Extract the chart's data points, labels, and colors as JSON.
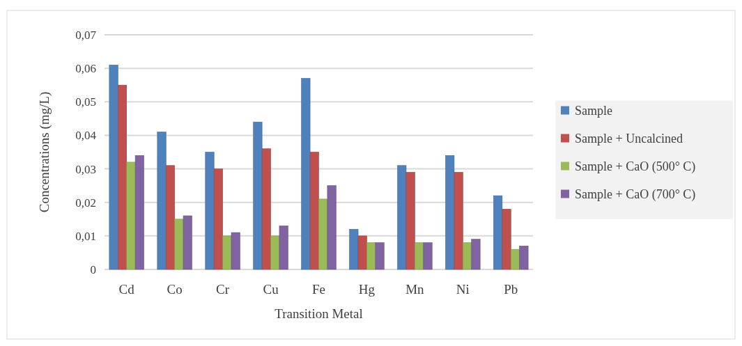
{
  "chart_data": {
    "type": "bar",
    "xlabel": "Transition Metal",
    "ylabel": "Concentrations (mg/L)",
    "categories": [
      "Cd",
      "Co",
      "Cr",
      "Cu",
      "Fe",
      "Hg",
      "Mn",
      "Ni",
      "Pb"
    ],
    "series": [
      {
        "name": "Sample",
        "color": "#4f81bd",
        "values": [
          0.061,
          0.041,
          0.035,
          0.044,
          0.057,
          0.012,
          0.031,
          0.034,
          0.022
        ]
      },
      {
        "name": "Sample + Uncalcined",
        "color": "#c0504d",
        "values": [
          0.055,
          0.031,
          0.03,
          0.036,
          0.035,
          0.01,
          0.029,
          0.029,
          0.018
        ]
      },
      {
        "name": "Sample + CaO (500° C)",
        "color": "#9bbb59",
        "values": [
          0.032,
          0.015,
          0.01,
          0.01,
          0.021,
          0.008,
          0.008,
          0.008,
          0.006
        ]
      },
      {
        "name": "Sample + CaO (700° C)",
        "color": "#8064a2",
        "values": [
          0.034,
          0.016,
          0.011,
          0.013,
          0.025,
          0.008,
          0.008,
          0.009,
          0.007
        ]
      }
    ],
    "ylim": [
      0,
      0.07
    ],
    "yticks": [
      0,
      {
        "value": 0.01,
        "label": "0,01"
      },
      {
        "value": 0.02,
        "label": "0,02"
      },
      {
        "value": 0.03,
        "label": "0,03"
      },
      {
        "value": 0.04,
        "label": "0,04"
      },
      {
        "value": 0.05,
        "label": "0,05"
      },
      {
        "value": 0.06,
        "label": "0,06"
      },
      {
        "value": 0.07,
        "label": "0,07"
      }
    ],
    "grid": "y",
    "legend": "right"
  }
}
